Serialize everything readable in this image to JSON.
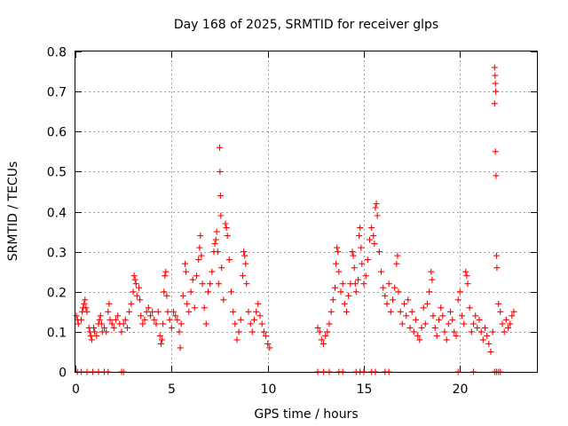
{
  "chart_data": {
    "type": "scatter",
    "title": "Day 168 of 2025, SRMTID for receiver glps",
    "xlabel": "GPS time / hours",
    "ylabel": "SRMTID / TECUs",
    "xlim": [
      0,
      24
    ],
    "ylim": [
      0,
      0.8
    ],
    "xticks": [
      0,
      5,
      10,
      15,
      20
    ],
    "xtick_labels": [
      "0",
      "5",
      "10",
      "15",
      "20"
    ],
    "yticks": [
      0,
      0.1,
      0.2,
      0.3,
      0.4,
      0.5,
      0.6,
      0.7,
      0.8
    ],
    "ytick_labels": [
      "0",
      "0.1",
      "0.2",
      "0.3",
      "0.4",
      "0.5",
      "0.6",
      "0.7",
      "0.8"
    ],
    "grid": true,
    "marker": "+",
    "color": "#ff0000",
    "series": [
      {
        "name": "SRMTID",
        "points": [
          [
            0.05,
            0.14
          ],
          [
            0.1,
            0.13
          ],
          [
            0.15,
            0.12
          ],
          [
            0.3,
            0.13
          ],
          [
            0.35,
            0.15
          ],
          [
            0.4,
            0.16
          ],
          [
            0.45,
            0.17
          ],
          [
            0.5,
            0.18
          ],
          [
            0.55,
            0.16
          ],
          [
            0.6,
            0.15
          ],
          [
            0.7,
            0.11
          ],
          [
            0.75,
            0.1
          ],
          [
            0.8,
            0.09
          ],
          [
            0.85,
            0.08
          ],
          [
            0.95,
            0.11
          ],
          [
            1.0,
            0.1
          ],
          [
            1.1,
            0.09
          ],
          [
            1.2,
            0.12
          ],
          [
            1.25,
            0.13
          ],
          [
            1.3,
            0.14
          ],
          [
            1.35,
            0.12
          ],
          [
            1.4,
            0.1
          ],
          [
            1.5,
            0.11
          ],
          [
            1.6,
            0.1
          ],
          [
            1.7,
            0.15
          ],
          [
            1.75,
            0.17
          ],
          [
            1.8,
            0.13
          ],
          [
            1.9,
            0.12
          ],
          [
            2.0,
            0.11
          ],
          [
            2.1,
            0.13
          ],
          [
            2.2,
            0.14
          ],
          [
            2.3,
            0.12
          ],
          [
            2.4,
            0.1
          ],
          [
            2.5,
            0.12
          ],
          [
            2.6,
            0.13
          ],
          [
            2.7,
            0.11
          ],
          [
            2.8,
            0.15
          ],
          [
            2.9,
            0.17
          ],
          [
            3.0,
            0.2
          ],
          [
            3.05,
            0.24
          ],
          [
            3.1,
            0.23
          ],
          [
            3.15,
            0.22
          ],
          [
            3.2,
            0.19
          ],
          [
            3.3,
            0.21
          ],
          [
            3.35,
            0.18
          ],
          [
            3.4,
            0.14
          ],
          [
            3.5,
            0.12
          ],
          [
            3.6,
            0.13
          ],
          [
            3.7,
            0.15
          ],
          [
            3.8,
            0.16
          ],
          [
            3.9,
            0.14
          ],
          [
            4.0,
            0.15
          ],
          [
            4.1,
            0.13
          ],
          [
            4.2,
            0.12
          ],
          [
            4.3,
            0.15
          ],
          [
            4.4,
            0.09
          ],
          [
            4.45,
            0.07
          ],
          [
            4.5,
            0.08
          ],
          [
            4.55,
            0.12
          ],
          [
            4.6,
            0.2
          ],
          [
            4.65,
            0.24
          ],
          [
            4.7,
            0.25
          ],
          [
            4.75,
            0.19
          ],
          [
            4.8,
            0.15
          ],
          [
            4.9,
            0.13
          ],
          [
            5.0,
            0.11
          ],
          [
            5.1,
            0.15
          ],
          [
            5.2,
            0.14
          ],
          [
            5.3,
            0.13
          ],
          [
            5.4,
            0.1
          ],
          [
            5.45,
            0.06
          ],
          [
            5.5,
            0.12
          ],
          [
            5.6,
            0.19
          ],
          [
            5.7,
            0.27
          ],
          [
            5.75,
            0.25
          ],
          [
            5.8,
            0.17
          ],
          [
            5.9,
            0.15
          ],
          [
            6.0,
            0.2
          ],
          [
            6.1,
            0.23
          ],
          [
            6.2,
            0.16
          ],
          [
            6.3,
            0.24
          ],
          [
            6.4,
            0.28
          ],
          [
            6.45,
            0.31
          ],
          [
            6.5,
            0.34
          ],
          [
            6.55,
            0.29
          ],
          [
            6.6,
            0.22
          ],
          [
            6.7,
            0.16
          ],
          [
            6.8,
            0.12
          ],
          [
            6.9,
            0.2
          ],
          [
            7.0,
            0.22
          ],
          [
            7.1,
            0.25
          ],
          [
            7.2,
            0.3
          ],
          [
            7.25,
            0.32
          ],
          [
            7.3,
            0.33
          ],
          [
            7.35,
            0.35
          ],
          [
            7.4,
            0.3
          ],
          [
            7.45,
            0.22
          ],
          [
            7.5,
            0.56
          ],
          [
            7.52,
            0.5
          ],
          [
            7.54,
            0.44
          ],
          [
            7.56,
            0.39
          ],
          [
            7.6,
            0.26
          ],
          [
            7.7,
            0.18
          ],
          [
            7.8,
            0.37
          ],
          [
            7.85,
            0.36
          ],
          [
            7.9,
            0.34
          ],
          [
            8.0,
            0.28
          ],
          [
            8.1,
            0.2
          ],
          [
            8.2,
            0.15
          ],
          [
            8.3,
            0.12
          ],
          [
            8.4,
            0.08
          ],
          [
            8.5,
            0.1
          ],
          [
            8.6,
            0.13
          ],
          [
            8.7,
            0.24
          ],
          [
            8.75,
            0.3
          ],
          [
            8.8,
            0.29
          ],
          [
            8.85,
            0.27
          ],
          [
            8.9,
            0.22
          ],
          [
            9.0,
            0.15
          ],
          [
            9.1,
            0.12
          ],
          [
            9.2,
            0.1
          ],
          [
            9.3,
            0.13
          ],
          [
            9.4,
            0.15
          ],
          [
            9.5,
            0.17
          ],
          [
            9.6,
            0.14
          ],
          [
            9.7,
            0.12
          ],
          [
            9.8,
            0.1
          ],
          [
            9.9,
            0.09
          ],
          [
            10.0,
            0.07
          ],
          [
            10.1,
            0.06
          ],
          [
            12.6,
            0.11
          ],
          [
            12.7,
            0.1
          ],
          [
            12.8,
            0.08
          ],
          [
            12.9,
            0.07
          ],
          [
            13.0,
            0.09
          ],
          [
            13.1,
            0.1
          ],
          [
            13.2,
            0.12
          ],
          [
            13.3,
            0.15
          ],
          [
            13.4,
            0.18
          ],
          [
            13.5,
            0.21
          ],
          [
            13.55,
            0.27
          ],
          [
            13.6,
            0.31
          ],
          [
            13.65,
            0.3
          ],
          [
            13.7,
            0.25
          ],
          [
            13.8,
            0.2
          ],
          [
            13.9,
            0.22
          ],
          [
            14.0,
            0.17
          ],
          [
            14.1,
            0.15
          ],
          [
            14.2,
            0.19
          ],
          [
            14.3,
            0.22
          ],
          [
            14.4,
            0.3
          ],
          [
            14.45,
            0.29
          ],
          [
            14.5,
            0.26
          ],
          [
            14.55,
            0.22
          ],
          [
            14.6,
            0.2
          ],
          [
            14.7,
            0.23
          ],
          [
            14.75,
            0.34
          ],
          [
            14.8,
            0.36
          ],
          [
            14.85,
            0.31
          ],
          [
            14.9,
            0.27
          ],
          [
            15.0,
            0.22
          ],
          [
            15.1,
            0.24
          ],
          [
            15.2,
            0.28
          ],
          [
            15.3,
            0.33
          ],
          [
            15.4,
            0.36
          ],
          [
            15.5,
            0.34
          ],
          [
            15.55,
            0.32
          ],
          [
            15.6,
            0.41
          ],
          [
            15.65,
            0.42
          ],
          [
            15.7,
            0.39
          ],
          [
            15.8,
            0.3
          ],
          [
            15.9,
            0.25
          ],
          [
            16.0,
            0.21
          ],
          [
            16.1,
            0.19
          ],
          [
            16.2,
            0.17
          ],
          [
            16.3,
            0.22
          ],
          [
            16.4,
            0.15
          ],
          [
            16.5,
            0.18
          ],
          [
            16.6,
            0.21
          ],
          [
            16.7,
            0.27
          ],
          [
            16.75,
            0.29
          ],
          [
            16.8,
            0.2
          ],
          [
            16.9,
            0.15
          ],
          [
            17.0,
            0.12
          ],
          [
            17.1,
            0.17
          ],
          [
            17.2,
            0.14
          ],
          [
            17.3,
            0.18
          ],
          [
            17.4,
            0.11
          ],
          [
            17.5,
            0.15
          ],
          [
            17.6,
            0.1
          ],
          [
            17.7,
            0.13
          ],
          [
            17.8,
            0.09
          ],
          [
            17.9,
            0.08
          ],
          [
            18.0,
            0.11
          ],
          [
            18.1,
            0.16
          ],
          [
            18.2,
            0.12
          ],
          [
            18.3,
            0.17
          ],
          [
            18.4,
            0.2
          ],
          [
            18.5,
            0.25
          ],
          [
            18.55,
            0.23
          ],
          [
            18.6,
            0.14
          ],
          [
            18.7,
            0.11
          ],
          [
            18.8,
            0.09
          ],
          [
            18.9,
            0.13
          ],
          [
            19.0,
            0.16
          ],
          [
            19.1,
            0.14
          ],
          [
            19.2,
            0.1
          ],
          [
            19.3,
            0.08
          ],
          [
            19.4,
            0.12
          ],
          [
            19.5,
            0.15
          ],
          [
            19.6,
            0.13
          ],
          [
            19.7,
            0.1
          ],
          [
            19.8,
            0.09
          ],
          [
            19.9,
            0.18
          ],
          [
            20.0,
            0.2
          ],
          [
            20.1,
            0.14
          ],
          [
            20.2,
            0.12
          ],
          [
            20.3,
            0.25
          ],
          [
            20.35,
            0.24
          ],
          [
            20.4,
            0.22
          ],
          [
            20.5,
            0.16
          ],
          [
            20.6,
            0.1
          ],
          [
            20.7,
            0.12
          ],
          [
            20.8,
            0.14
          ],
          [
            20.9,
            0.11
          ],
          [
            21.0,
            0.13
          ],
          [
            21.1,
            0.1
          ],
          [
            21.2,
            0.08
          ],
          [
            21.3,
            0.11
          ],
          [
            21.4,
            0.09
          ],
          [
            21.5,
            0.07
          ],
          [
            21.6,
            0.05
          ],
          [
            21.7,
            0.1
          ],
          [
            21.8,
            0.76
          ],
          [
            21.82,
            0.74
          ],
          [
            21.84,
            0.72
          ],
          [
            21.86,
            0.7
          ],
          [
            21.8,
            0.67
          ],
          [
            21.84,
            0.55
          ],
          [
            21.87,
            0.49
          ],
          [
            21.9,
            0.29
          ],
          [
            21.92,
            0.26
          ],
          [
            22.0,
            0.17
          ],
          [
            22.1,
            0.15
          ],
          [
            22.2,
            0.12
          ],
          [
            22.3,
            0.1
          ],
          [
            22.4,
            0.13
          ],
          [
            22.5,
            0.11
          ],
          [
            22.6,
            0.12
          ],
          [
            22.7,
            0.14
          ],
          [
            22.8,
            0.15
          ],
          [
            0.1,
            0.0
          ],
          [
            0.3,
            0.0
          ],
          [
            0.6,
            0.0
          ],
          [
            0.9,
            0.0
          ],
          [
            1.2,
            0.0
          ],
          [
            1.5,
            0.0
          ],
          [
            1.7,
            0.0
          ],
          [
            2.4,
            0.0
          ],
          [
            2.5,
            0.0
          ],
          [
            12.6,
            0.0
          ],
          [
            12.9,
            0.0
          ],
          [
            13.2,
            0.0
          ],
          [
            13.7,
            0.0
          ],
          [
            13.9,
            0.0
          ],
          [
            14.6,
            0.0
          ],
          [
            14.8,
            0.0
          ],
          [
            15.0,
            0.0
          ],
          [
            15.4,
            0.0
          ],
          [
            15.6,
            0.0
          ],
          [
            16.1,
            0.0
          ],
          [
            16.3,
            0.0
          ],
          [
            19.9,
            0.0
          ],
          [
            20.7,
            0.0
          ],
          [
            21.8,
            0.0
          ],
          [
            21.9,
            0.0
          ],
          [
            22.0,
            0.0
          ],
          [
            22.1,
            0.0
          ]
        ]
      }
    ]
  }
}
